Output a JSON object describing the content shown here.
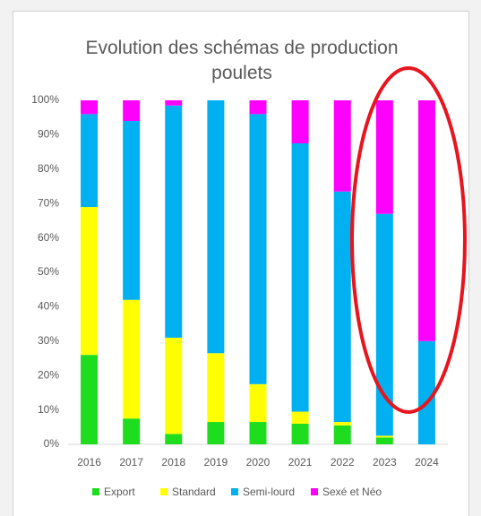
{
  "chart_data": {
    "type": "stacked_bar",
    "title": "Evolution des schémas de production poulets",
    "categories": [
      "2016",
      "2017",
      "2018",
      "2019",
      "2020",
      "2021",
      "2022",
      "2023",
      "2024"
    ],
    "series": [
      {
        "name": "Export",
        "color": "#1edc1e",
        "values": [
          26,
          7.5,
          3,
          6.5,
          6.5,
          6,
          5.5,
          2,
          0
        ]
      },
      {
        "name": "Standard",
        "color": "#ffff00",
        "values": [
          43,
          34.5,
          28,
          20,
          11,
          3.5,
          1,
          0.5,
          0
        ]
      },
      {
        "name": "Semi-lourd",
        "color": "#00b0f0",
        "values": [
          27,
          52,
          67.5,
          73.5,
          78.5,
          78,
          67,
          64.5,
          30
        ]
      },
      {
        "name": "Sexé et Néo",
        "color": "#ff00ff",
        "values": [
          4,
          6,
          1.5,
          0,
          4,
          12.5,
          26.5,
          33,
          70
        ]
      }
    ],
    "ylim": [
      0,
      100
    ],
    "yticks": [
      {
        "value": 0,
        "label": "0%"
      },
      {
        "value": 10,
        "label": "10%"
      },
      {
        "value": 20,
        "label": "20%"
      },
      {
        "value": 30,
        "label": "30%"
      },
      {
        "value": 40,
        "label": "40%"
      },
      {
        "value": 50,
        "label": "50%"
      },
      {
        "value": 60,
        "label": "60%"
      },
      {
        "value": 70,
        "label": "70%"
      },
      {
        "value": 80,
        "label": "80%"
      },
      {
        "value": 90,
        "label": "90%"
      },
      {
        "value": 100,
        "label": "100%"
      }
    ],
    "legend": "bottom"
  }
}
